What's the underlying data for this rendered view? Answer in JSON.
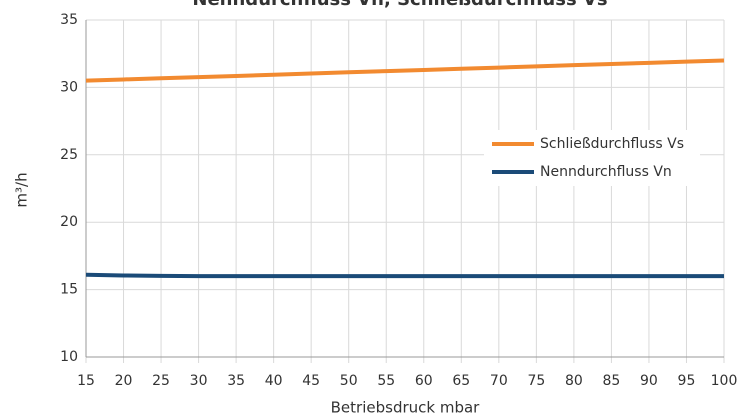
{
  "chart_data": {
    "type": "line",
    "title": "Nenndurchfluss Vn, Schließdurchfluss Vs",
    "x_label": "Betriebsdruck mbar",
    "y_label": "m³/h",
    "x": [
      15,
      20,
      25,
      30,
      35,
      40,
      45,
      50,
      55,
      60,
      65,
      70,
      75,
      80,
      85,
      90,
      95,
      100
    ],
    "series": [
      {
        "name": "Schließdurchfluss Vs",
        "color": "#f28a30",
        "values": [
          30.5,
          30.59,
          30.68,
          30.76,
          30.85,
          30.94,
          31.03,
          31.12,
          31.21,
          31.29,
          31.38,
          31.47,
          31.56,
          31.65,
          31.74,
          31.82,
          31.91,
          32.0
        ]
      },
      {
        "name": "Nenndurchfluss Vn",
        "color": "#1b4b78",
        "values": [
          16.1,
          16.05,
          16.02,
          16.0,
          16.0,
          16.0,
          16.0,
          16.0,
          16.0,
          16.0,
          16.0,
          16.0,
          16.0,
          16.0,
          16.0,
          16.0,
          16.0,
          16.0
        ]
      }
    ],
    "xlim": [
      15,
      100
    ],
    "xticks": [
      15,
      20,
      25,
      30,
      35,
      40,
      45,
      50,
      55,
      60,
      65,
      70,
      75,
      80,
      85,
      90,
      95,
      100
    ],
    "ylim": [
      10,
      35
    ],
    "yticks": [
      10,
      15,
      20,
      25,
      30,
      35
    ],
    "grid": true,
    "legend": "right"
  }
}
